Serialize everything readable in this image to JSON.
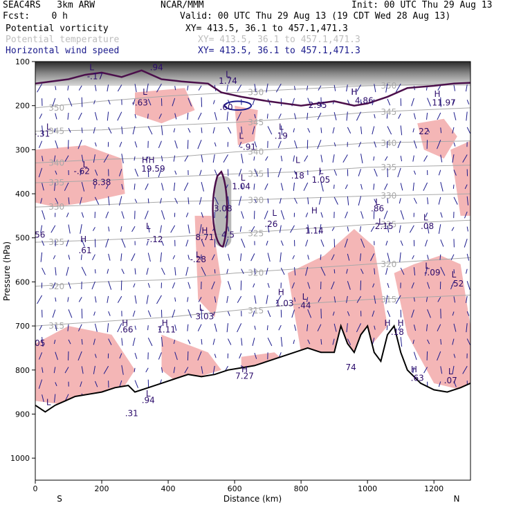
{
  "header": {
    "model": "SEAC4RS   3km ARW",
    "center": "NCAR/MMM",
    "init": "Init: 00 UTC Thu 29 Aug 13",
    "fcst": "Fcst:    0 h",
    "valid": "Valid: 00 UTC Thu 29 Aug 13 (19 CDT Wed 28 Aug 13)",
    "fields": [
      {
        "name": "Potential vorticity",
        "xy": "XY= 413.5, 36.1 to 457.1,471.3",
        "color": "#000000"
      },
      {
        "name": "Potential temperature",
        "xy": "XY= 413.5, 36.1 to 457.1,471.3",
        "color": "#bdbdbd"
      },
      {
        "name": "Horizontal wind speed",
        "xy": "XY= 413.5, 36.1 to 457.1,471.3",
        "color": "#1a1a8c"
      }
    ]
  },
  "chart_data": {
    "type": "cross-section",
    "xlabel": "Distance (km)",
    "ylabel": "Pressure (hPa)",
    "x_ticks": [
      0,
      200,
      400,
      600,
      800,
      1000,
      1200
    ],
    "y_ticks": [
      100,
      200,
      300,
      400,
      500,
      600,
      700,
      800,
      900,
      1000
    ],
    "xlim": [
      0,
      1310
    ],
    "ylim": [
      1050,
      100
    ],
    "left_end": "S",
    "right_end": "N",
    "colors": {
      "pv_fill": "#f4b6b6",
      "theta": "#a8a8a8",
      "wind": "#1a1a8c",
      "terrain": "#000000",
      "tropopause": "#4b0f4b"
    },
    "theta_contours": [
      {
        "label": "350",
        "points": [
          [
            0,
            205
          ],
          [
            200,
            190
          ],
          [
            400,
            178
          ],
          [
            600,
            170
          ],
          [
            800,
            162
          ],
          [
            1000,
            155
          ],
          [
            1310,
            150
          ]
        ]
      },
      {
        "label": "345",
        "points": [
          [
            0,
            258
          ],
          [
            200,
            255
          ],
          [
            400,
            245
          ],
          [
            600,
            238
          ],
          [
            800,
            228
          ],
          [
            1000,
            215
          ],
          [
            1310,
            205
          ]
        ]
      },
      {
        "label": "340",
        "points": [
          [
            0,
            330
          ],
          [
            200,
            322
          ],
          [
            400,
            318
          ],
          [
            600,
            305
          ],
          [
            800,
            295
          ],
          [
            1000,
            285
          ],
          [
            1310,
            280
          ]
        ]
      },
      {
        "label": "335",
        "points": [
          [
            0,
            375
          ],
          [
            200,
            370
          ],
          [
            400,
            362
          ],
          [
            600,
            355
          ],
          [
            800,
            350
          ],
          [
            1000,
            340
          ],
          [
            1310,
            335
          ]
        ]
      },
      {
        "label": "330",
        "points": [
          [
            0,
            430
          ],
          [
            200,
            425
          ],
          [
            400,
            418
          ],
          [
            600,
            415
          ],
          [
            800,
            410
          ],
          [
            1000,
            405
          ],
          [
            1310,
            400
          ]
        ]
      },
      {
        "label": "325",
        "points": [
          [
            0,
            510
          ],
          [
            200,
            505
          ],
          [
            400,
            498
          ],
          [
            600,
            490
          ],
          [
            800,
            480
          ],
          [
            1000,
            470
          ],
          [
            1310,
            460
          ]
        ]
      },
      {
        "label": "320",
        "points": [
          [
            0,
            610
          ],
          [
            200,
            600
          ],
          [
            400,
            595
          ],
          [
            600,
            580
          ],
          [
            800,
            570
          ],
          [
            1000,
            560
          ],
          [
            1310,
            545
          ]
        ]
      },
      {
        "label": "315",
        "points": [
          [
            0,
            700
          ],
          [
            200,
            690
          ],
          [
            400,
            680
          ],
          [
            600,
            665
          ],
          [
            800,
            650
          ],
          [
            1000,
            640
          ],
          [
            1310,
            630
          ]
        ]
      }
    ],
    "hl_labels": [
      {
        "t": "L",
        "x": 40,
        "p": 255
      },
      {
        "t": "-.31",
        "x": 20,
        "p": 270
      },
      {
        "t": "L",
        "x": 150,
        "p": 340
      },
      {
        "t": "-.62",
        "x": 140,
        "p": 355
      },
      {
        "t": "8.38",
        "x": 200,
        "p": 380
      },
      {
        "t": "H",
        "x": 330,
        "p": 330
      },
      {
        "t": "H",
        "x": 350,
        "p": 330
      },
      {
        "t": "19.59",
        "x": 355,
        "p": 350
      },
      {
        "t": "L",
        "x": 170,
        "p": 120
      },
      {
        "t": "-.17",
        "x": 180,
        "p": 140
      },
      {
        "t": "L",
        "x": 330,
        "p": 175
      },
      {
        "t": "-.63",
        "x": 315,
        "p": 200
      },
      {
        "t": ".94",
        "x": 365,
        "p": 120
      },
      {
        "t": "L",
        "x": 580,
        "p": 135
      },
      {
        "t": "1.74",
        "x": 580,
        "p": 150
      },
      {
        "t": ".60",
        "x": 575,
        "p": 210
      },
      {
        "t": "L",
        "x": 740,
        "p": 255
      },
      {
        "t": ".19",
        "x": 740,
        "p": 275
      },
      {
        "t": "L",
        "x": 620,
        "p": 275
      },
      {
        "t": "-.91",
        "x": 640,
        "p": 300
      },
      {
        "t": "L",
        "x": 625,
        "p": 370
      },
      {
        "t": "1.04",
        "x": 620,
        "p": 390
      },
      {
        "t": "3.08",
        "x": 565,
        "p": 440
      },
      {
        "t": "4.5",
        "x": 580,
        "p": 500
      },
      {
        "t": "L",
        "x": 790,
        "p": 330
      },
      {
        "t": ".18",
        "x": 790,
        "p": 365
      },
      {
        "t": "L",
        "x": 860,
        "p": 355
      },
      {
        "t": "1.05",
        "x": 860,
        "p": 375
      },
      {
        "t": "L",
        "x": 720,
        "p": 450
      },
      {
        "t": ".26",
        "x": 710,
        "p": 475
      },
      {
        "t": "H",
        "x": 840,
        "p": 445
      },
      {
        "t": "1.14",
        "x": 840,
        "p": 490
      },
      {
        "t": "H",
        "x": 510,
        "p": 490
      },
      {
        "t": "8.71",
        "x": 510,
        "p": 505
      },
      {
        "t": "L",
        "x": 340,
        "p": 480
      },
      {
        "t": "-.12",
        "x": 360,
        "p": 510
      },
      {
        "t": "H",
        "x": 145,
        "p": 510
      },
      {
        "t": ".61",
        "x": 150,
        "p": 535
      },
      {
        "t": "L",
        "x": 490,
        "p": 545
      },
      {
        "t": "-.28",
        "x": 490,
        "p": 555
      },
      {
        "t": "H",
        "x": 740,
        "p": 630
      },
      {
        "t": "1.03",
        "x": 750,
        "p": 655
      },
      {
        "t": "L",
        "x": 810,
        "p": 640
      },
      {
        "t": ".44",
        "x": 810,
        "p": 660
      },
      {
        "t": "H",
        "x": 960,
        "p": 175
      },
      {
        "t": "2.95",
        "x": 850,
        "p": 205
      },
      {
        "t": "H",
        "x": 960,
        "p": 175
      },
      {
        "t": "4.86",
        "x": 990,
        "p": 195
      },
      {
        "t": "L",
        "x": 1030,
        "p": 425
      },
      {
        "t": ".86",
        "x": 1030,
        "p": 440
      },
      {
        "t": "L",
        "x": 1040,
        "p": 470
      },
      {
        "t": "2.15",
        "x": 1050,
        "p": 480
      },
      {
        "t": "L",
        "x": 1175,
        "p": 460
      },
      {
        "t": ".08",
        "x": 1180,
        "p": 480
      },
      {
        "t": "L",
        "x": 1180,
        "p": 570
      },
      {
        "t": "-.09",
        "x": 1195,
        "p": 585
      },
      {
        "t": "H",
        "x": 1210,
        "p": 180
      },
      {
        "t": "11.97",
        "x": 1230,
        "p": 200
      },
      {
        "t": "22",
        "x": 1170,
        "p": 265
      },
      {
        "t": "L",
        "x": 1260,
        "p": 590
      },
      {
        "t": ".52",
        "x": 1270,
        "p": 610
      },
      {
        "t": "H",
        "x": 1060,
        "p": 700
      },
      {
        "t": "H",
        "x": 1100,
        "p": 700
      },
      {
        "t": ".18",
        "x": 1090,
        "p": 720
      },
      {
        "t": "L",
        "x": 500,
        "p": 665
      },
      {
        "t": "3.03",
        "x": 510,
        "p": 685
      },
      {
        "t": "H",
        "x": 270,
        "p": 700
      },
      {
        "t": ".66",
        "x": 275,
        "p": 715
      },
      {
        "t": "H",
        "x": 390,
        "p": 700
      },
      {
        "t": "1.11",
        "x": 395,
        "p": 715
      },
      {
        "t": "H",
        "x": 630,
        "p": 805
      },
      {
        "t": "7.27",
        "x": 630,
        "p": 820
      },
      {
        "t": "74",
        "x": 950,
        "p": 800
      },
      {
        "t": "H",
        "x": 1140,
        "p": 805
      },
      {
        "t": ".63",
        "x": 1150,
        "p": 825
      },
      {
        "t": "L",
        "x": 1250,
        "p": 810
      },
      {
        "t": ".07",
        "x": 1250,
        "p": 830
      },
      {
        "t": "L",
        "x": 340,
        "p": 860
      },
      {
        "t": ".94",
        "x": 340,
        "p": 875
      },
      {
        "t": "L",
        "x": 40,
        "p": 880
      },
      {
        "t": ".31",
        "x": 290,
        "p": 905
      },
      {
        "t": ".05",
        "x": 10,
        "p": 745
      },
      {
        "t": ".56",
        "x": 10,
        "p": 500
      }
    ]
  }
}
